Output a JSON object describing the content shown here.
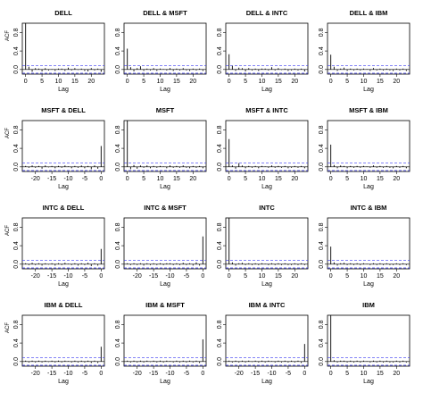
{
  "chart_data": {
    "type": "acf-matrix",
    "ylabel": "ACF",
    "xlabel": "Lag",
    "ci_band": 0.08,
    "ylim": [
      -0.1,
      1.0
    ],
    "yticks": [
      0.0,
      0.4,
      0.8
    ],
    "yticklabels": [
      "0.0",
      "0.4",
      "0.8"
    ],
    "xticks_pos": [
      0,
      5,
      10,
      15,
      20
    ],
    "xticks_neg": [
      -20,
      -15,
      -10,
      -5,
      0
    ],
    "xlim_pos": [
      -1,
      24
    ],
    "xlim_neg": [
      -24,
      1
    ],
    "panels": [
      {
        "title": "DELL",
        "side": "pos",
        "values": [
          1.0,
          0.06,
          -0.05,
          0.03,
          0.02,
          -0.04,
          0.03,
          -0.02,
          0.01,
          -0.03,
          0.02,
          0.02,
          -0.03,
          0.04,
          -0.02,
          0.03,
          -0.01,
          0.02,
          -0.03,
          -0.04,
          0.03,
          -0.02,
          0.02,
          -0.05
        ]
      },
      {
        "title": "DELL & MSFT",
        "side": "pos",
        "values": [
          0.45,
          0.05,
          -0.04,
          0.03,
          0.07,
          -0.03,
          0.02,
          -0.02,
          0.03,
          -0.03,
          0.02,
          0.01,
          -0.02,
          0.03,
          -0.03,
          0.02,
          -0.02,
          0.03,
          -0.02,
          -0.03,
          0.02,
          -0.02,
          0.02,
          -0.03
        ]
      },
      {
        "title": "DELL & INTC",
        "side": "pos",
        "values": [
          0.33,
          0.08,
          -0.03,
          0.04,
          0.03,
          -0.04,
          0.03,
          -0.02,
          0.02,
          -0.03,
          0.02,
          0.02,
          -0.02,
          0.05,
          -0.02,
          0.03,
          -0.01,
          0.02,
          -0.03,
          -0.02,
          0.02,
          -0.02,
          0.02,
          -0.04
        ]
      },
      {
        "title": "DELL & IBM",
        "side": "pos",
        "values": [
          0.32,
          0.06,
          -0.03,
          0.02,
          0.04,
          -0.03,
          0.02,
          -0.02,
          0.02,
          -0.02,
          0.02,
          0.01,
          -0.03,
          0.03,
          -0.02,
          0.02,
          -0.02,
          0.02,
          -0.02,
          -0.03,
          0.02,
          -0.02,
          0.02,
          -0.03
        ]
      },
      {
        "title": "MSFT & DELL",
        "side": "neg",
        "values": [
          0.45,
          -0.04,
          0.03,
          -0.05,
          0.02,
          -0.03,
          0.03,
          -0.02,
          0.02,
          -0.03,
          0.01,
          0.03,
          -0.02,
          0.02,
          -0.03,
          0.02,
          -0.01,
          0.03,
          -0.04,
          0.02,
          -0.02,
          0.03,
          -0.02,
          0.02
        ]
      },
      {
        "title": "MSFT",
        "side": "pos",
        "values": [
          1.0,
          -0.05,
          0.04,
          -0.04,
          0.03,
          -0.02,
          0.03,
          -0.03,
          0.02,
          -0.02,
          0.02,
          0.01,
          -0.03,
          0.03,
          -0.02,
          0.02,
          -0.02,
          0.03,
          -0.02,
          -0.03,
          0.02,
          -0.02,
          0.02,
          -0.03
        ]
      },
      {
        "title": "MSFT & INTC",
        "side": "pos",
        "values": [
          0.6,
          0.03,
          -0.04,
          0.08,
          0.03,
          -0.03,
          0.02,
          -0.02,
          0.02,
          -0.03,
          0.02,
          0.01,
          -0.02,
          0.03,
          -0.02,
          0.02,
          -0.02,
          0.02,
          -0.03,
          -0.02,
          0.02,
          -0.02,
          0.02,
          -0.03
        ]
      },
      {
        "title": "MSFT & IBM",
        "side": "pos",
        "values": [
          0.48,
          0.04,
          -0.03,
          0.03,
          0.02,
          -0.03,
          0.02,
          -0.02,
          0.02,
          -0.02,
          0.02,
          0.01,
          -0.02,
          0.03,
          -0.02,
          0.02,
          -0.02,
          0.02,
          -0.02,
          -0.03,
          0.02,
          -0.02,
          0.02,
          -0.03
        ]
      },
      {
        "title": "INTC & DELL",
        "side": "neg",
        "values": [
          0.33,
          -0.03,
          0.02,
          -0.04,
          0.03,
          -0.02,
          0.02,
          -0.03,
          0.02,
          -0.02,
          0.01,
          0.03,
          -0.02,
          0.02,
          -0.03,
          0.02,
          -0.01,
          0.02,
          -0.03,
          0.02,
          -0.02,
          0.03,
          -0.02,
          0.02
        ]
      },
      {
        "title": "INTC & MSFT",
        "side": "neg",
        "values": [
          0.6,
          -0.03,
          0.04,
          -0.03,
          0.02,
          -0.02,
          0.03,
          -0.02,
          0.02,
          -0.02,
          0.02,
          0.02,
          -0.02,
          0.02,
          -0.02,
          0.02,
          -0.02,
          0.02,
          -0.03,
          0.02,
          -0.02,
          0.02,
          -0.02,
          0.02
        ]
      },
      {
        "title": "INTC",
        "side": "pos",
        "values": [
          1.0,
          0.04,
          -0.03,
          0.02,
          0.03,
          -0.02,
          0.02,
          -0.02,
          0.02,
          -0.02,
          0.02,
          0.01,
          -0.02,
          0.02,
          -0.02,
          0.02,
          -0.02,
          0.02,
          -0.02,
          -0.02,
          0.02,
          -0.02,
          0.02,
          -0.02
        ]
      },
      {
        "title": "INTC & IBM",
        "side": "pos",
        "values": [
          0.38,
          0.04,
          -0.03,
          0.02,
          0.03,
          -0.02,
          0.02,
          -0.02,
          0.02,
          -0.02,
          0.02,
          0.01,
          -0.02,
          0.02,
          -0.02,
          0.02,
          -0.02,
          0.02,
          -0.02,
          -0.02,
          0.02,
          -0.02,
          0.02,
          -0.02
        ]
      },
      {
        "title": "IBM & DELL",
        "side": "neg",
        "values": [
          0.32,
          -0.03,
          0.02,
          -0.03,
          0.02,
          -0.02,
          0.02,
          -0.02,
          0.02,
          -0.02,
          0.01,
          0.02,
          -0.02,
          0.02,
          -0.02,
          0.02,
          -0.01,
          0.02,
          -0.02,
          0.02,
          -0.02,
          0.02,
          -0.02,
          0.02
        ]
      },
      {
        "title": "IBM & MSFT",
        "side": "neg",
        "values": [
          0.48,
          -0.03,
          0.02,
          -0.02,
          0.02,
          -0.02,
          0.02,
          -0.02,
          0.02,
          -0.02,
          0.01,
          0.02,
          -0.02,
          0.02,
          -0.02,
          0.02,
          -0.01,
          0.02,
          -0.02,
          0.02,
          -0.02,
          0.02,
          -0.02,
          0.02
        ]
      },
      {
        "title": "IBM & INTC",
        "side": "neg",
        "values": [
          0.38,
          -0.03,
          0.02,
          -0.02,
          0.02,
          -0.02,
          0.02,
          -0.02,
          0.02,
          -0.02,
          0.01,
          0.02,
          -0.02,
          0.02,
          -0.02,
          0.02,
          -0.01,
          0.02,
          -0.02,
          0.02,
          -0.02,
          0.02,
          -0.02,
          0.02
        ]
      },
      {
        "title": "IBM",
        "side": "pos",
        "values": [
          1.0,
          0.03,
          -0.02,
          0.02,
          0.02,
          -0.02,
          0.02,
          -0.02,
          0.02,
          -0.02,
          0.02,
          0.01,
          -0.02,
          0.02,
          -0.02,
          0.02,
          -0.02,
          0.02,
          -0.02,
          -0.02,
          0.02,
          -0.02,
          0.02,
          -0.02
        ]
      }
    ]
  }
}
